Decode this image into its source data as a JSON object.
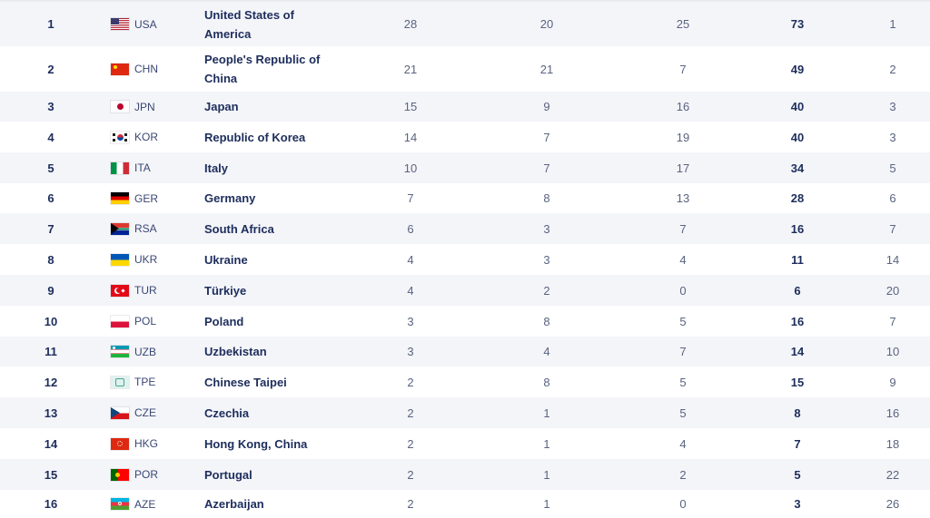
{
  "rows": [
    {
      "rank": "1",
      "noc": "USA",
      "name": "United States of America",
      "gold": "28",
      "silver": "20",
      "bronze": "25",
      "total": "73",
      "rank_total": "1",
      "flag": "usa"
    },
    {
      "rank": "2",
      "noc": "CHN",
      "name": "People's Republic of China",
      "gold": "21",
      "silver": "21",
      "bronze": "7",
      "total": "49",
      "rank_total": "2",
      "flag": "chn"
    },
    {
      "rank": "3",
      "noc": "JPN",
      "name": "Japan",
      "gold": "15",
      "silver": "9",
      "bronze": "16",
      "total": "40",
      "rank_total": "3",
      "flag": "jpn"
    },
    {
      "rank": "4",
      "noc": "KOR",
      "name": "Republic of Korea",
      "gold": "14",
      "silver": "7",
      "bronze": "19",
      "total": "40",
      "rank_total": "3",
      "flag": "kor"
    },
    {
      "rank": "5",
      "noc": "ITA",
      "name": "Italy",
      "gold": "10",
      "silver": "7",
      "bronze": "17",
      "total": "34",
      "rank_total": "5",
      "flag": "ita"
    },
    {
      "rank": "6",
      "noc": "GER",
      "name": "Germany",
      "gold": "7",
      "silver": "8",
      "bronze": "13",
      "total": "28",
      "rank_total": "6",
      "flag": "ger"
    },
    {
      "rank": "7",
      "noc": "RSA",
      "name": "South Africa",
      "gold": "6",
      "silver": "3",
      "bronze": "7",
      "total": "16",
      "rank_total": "7",
      "flag": "rsa"
    },
    {
      "rank": "8",
      "noc": "UKR",
      "name": "Ukraine",
      "gold": "4",
      "silver": "3",
      "bronze": "4",
      "total": "11",
      "rank_total": "14",
      "flag": "ukr"
    },
    {
      "rank": "9",
      "noc": "TUR",
      "name": "Türkiye",
      "gold": "4",
      "silver": "2",
      "bronze": "0",
      "total": "6",
      "rank_total": "20",
      "flag": "tur"
    },
    {
      "rank": "10",
      "noc": "POL",
      "name": "Poland",
      "gold": "3",
      "silver": "8",
      "bronze": "5",
      "total": "16",
      "rank_total": "7",
      "flag": "pol"
    },
    {
      "rank": "11",
      "noc": "UZB",
      "name": "Uzbekistan",
      "gold": "3",
      "silver": "4",
      "bronze": "7",
      "total": "14",
      "rank_total": "10",
      "flag": "uzb"
    },
    {
      "rank": "12",
      "noc": "TPE",
      "name": "Chinese Taipei",
      "gold": "2",
      "silver": "8",
      "bronze": "5",
      "total": "15",
      "rank_total": "9",
      "flag": "tpe"
    },
    {
      "rank": "13",
      "noc": "CZE",
      "name": "Czechia",
      "gold": "2",
      "silver": "1",
      "bronze": "5",
      "total": "8",
      "rank_total": "16",
      "flag": "cze"
    },
    {
      "rank": "14",
      "noc": "HKG",
      "name": "Hong Kong, China",
      "gold": "2",
      "silver": "1",
      "bronze": "4",
      "total": "7",
      "rank_total": "18",
      "flag": "hkg"
    },
    {
      "rank": "15",
      "noc": "POR",
      "name": "Portugal",
      "gold": "2",
      "silver": "1",
      "bronze": "2",
      "total": "5",
      "rank_total": "22",
      "flag": "por"
    },
    {
      "rank": "16",
      "noc": "AZE",
      "name": "Azerbaijan",
      "gold": "2",
      "silver": "1",
      "bronze": "0",
      "total": "3",
      "rank_total": "26",
      "flag": "aze"
    }
  ],
  "colors": {
    "text_primary": "#1d2d5c",
    "text_secondary": "#5a6480",
    "row_alt": "#f4f5f9"
  }
}
